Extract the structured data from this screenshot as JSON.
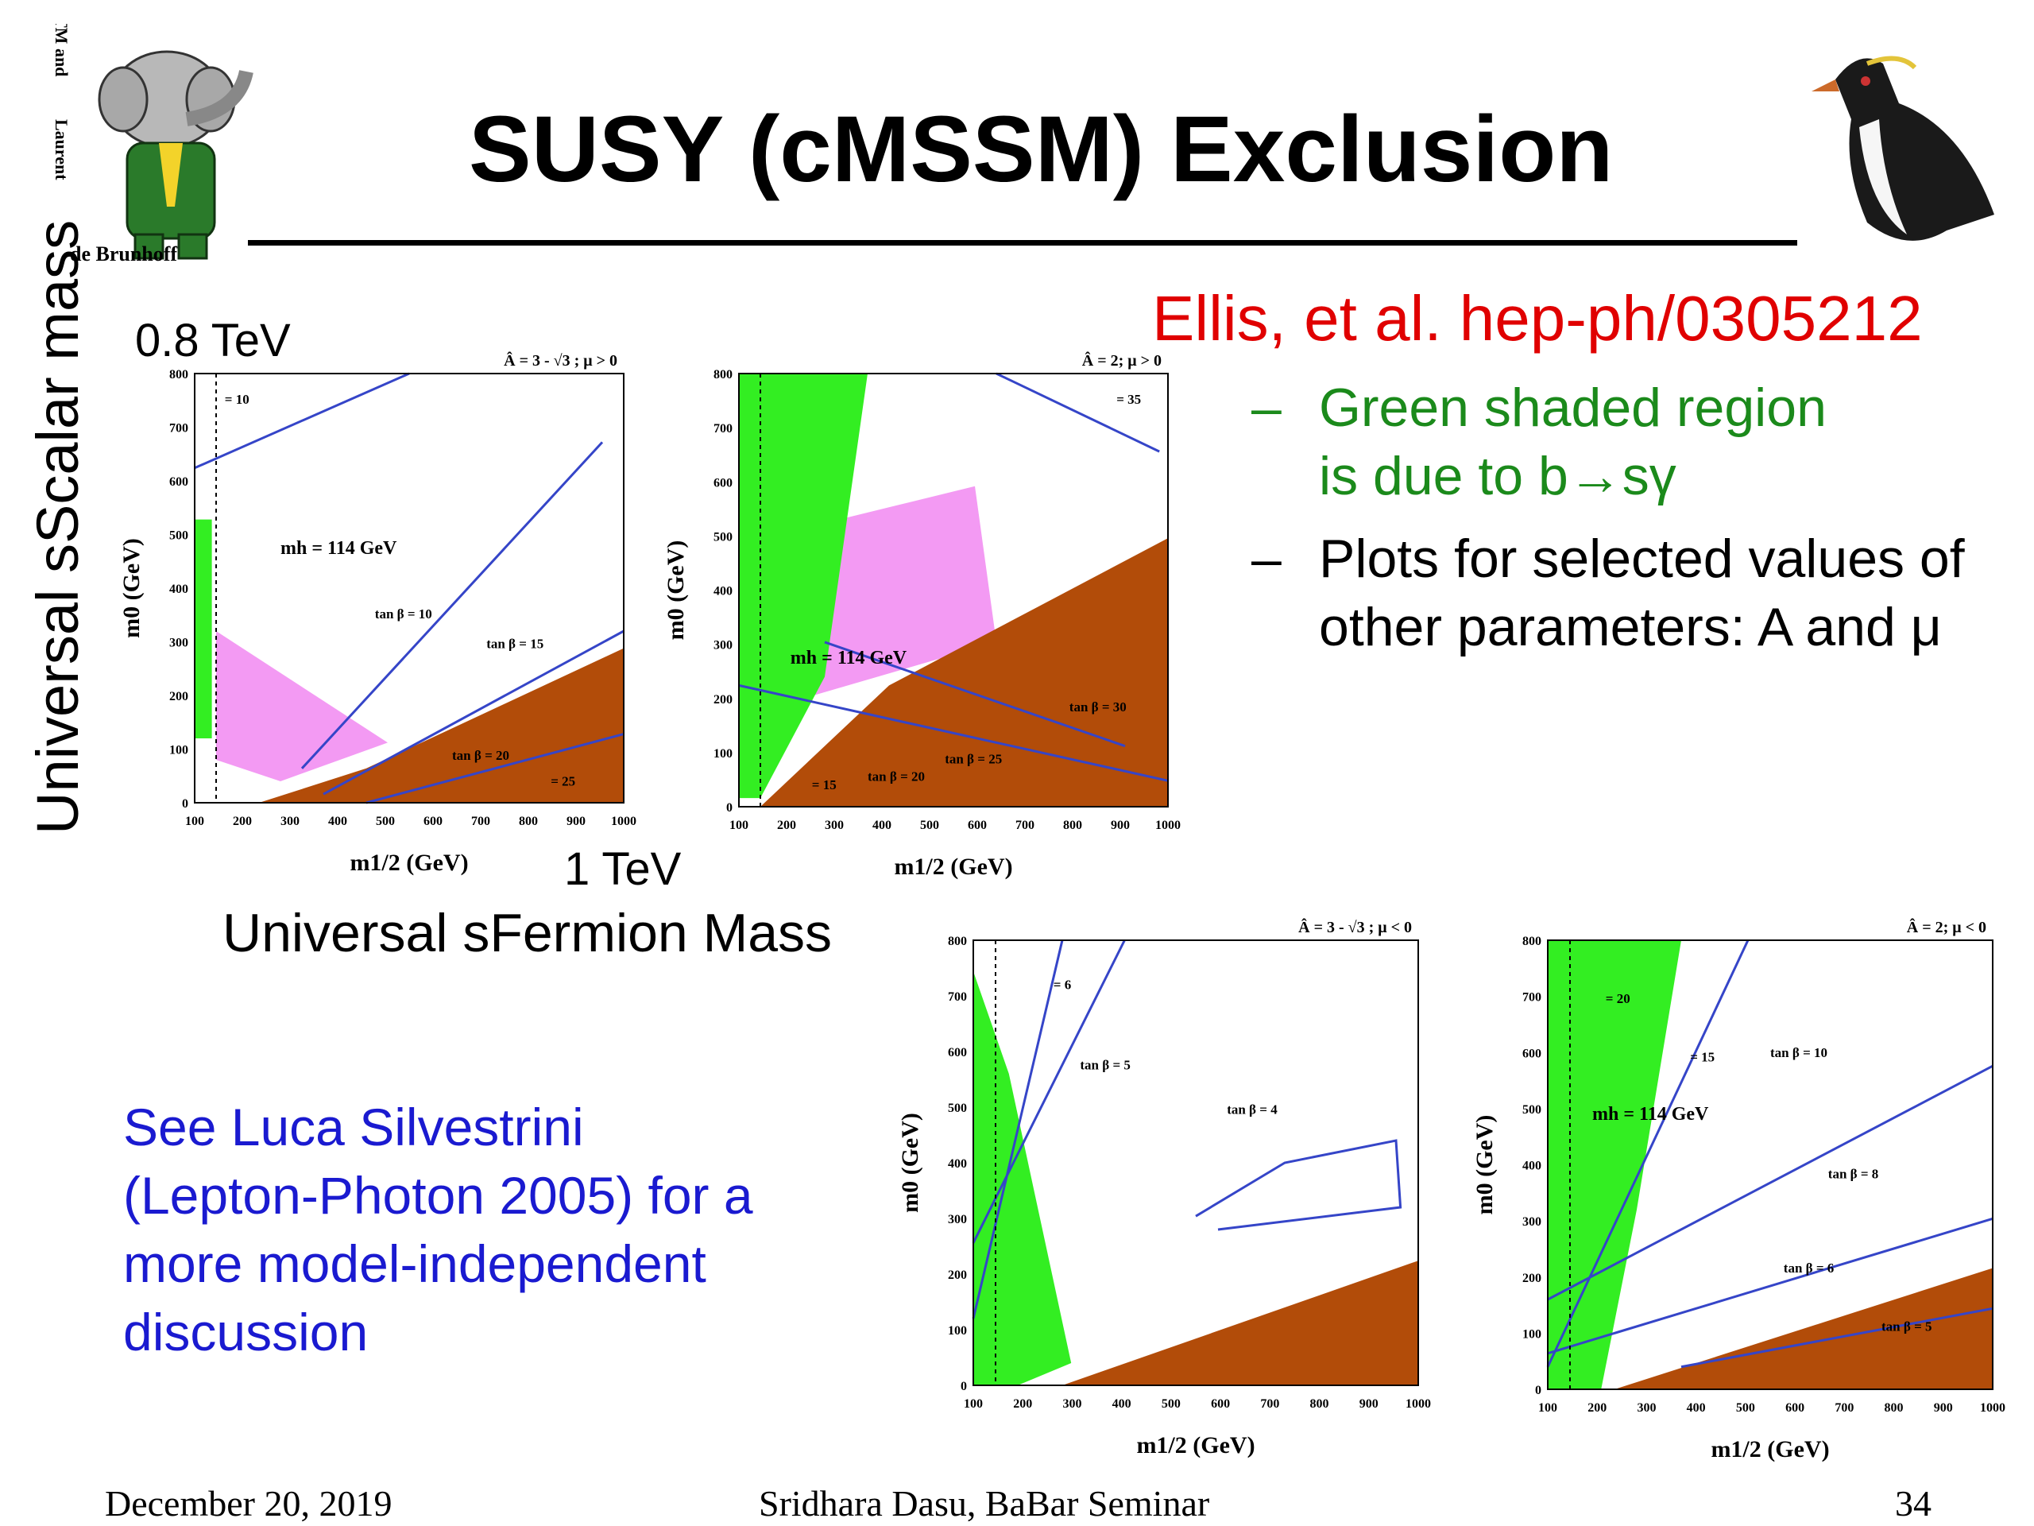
{
  "title": "SUSY (cMSSM) Exclusion",
  "logo_text": {
    "tm": "TM and",
    "copyright": "Laurent",
    "brand": "de Brunhoff"
  },
  "axis": {
    "y_label": "Universal sScalar mass",
    "y_max": "0.8 TeV",
    "x_max": "1 TeV",
    "x_label": "Universal sFermion Mass"
  },
  "reference": "Ellis, et al. hep-ph/0305212",
  "bullets": [
    {
      "dash": "–",
      "line1": "Green shaded region",
      "line2": "is due to b→sγ"
    },
    {
      "dash": "–",
      "line1": "Plots for selected values of",
      "line2": "other parameters: A and μ"
    }
  ],
  "note": [
    "See Luca Silvestrini",
    "(Lepton-Photon 2005) for a",
    "more model-independent",
    "discussion"
  ],
  "footer": {
    "date": "December 20, 2019",
    "center": "Sridhara Dasu, BaBar Seminar",
    "page": "34"
  },
  "colors": {
    "green_region": "#33ee22",
    "pink_region": "#f39af3",
    "brown_region": "#b24c09",
    "contour": "#3545c8",
    "ref_red": "#e00000",
    "bullet_green": "#1b8a1b",
    "note_blue": "#1a1ad0"
  },
  "chart_data": [
    {
      "type": "area",
      "title": "Â = 3 - √3 ; μ > 0",
      "xlabel": "m1/2 (GeV)",
      "ylabel": "m0 (GeV)",
      "xlim": [
        100,
        1000
      ],
      "ylim": [
        0,
        800
      ],
      "x_ticks": [
        "100",
        "200",
        "300",
        "400",
        "500",
        "600",
        "700",
        "800",
        "900",
        "1000"
      ],
      "y_ticks": [
        "0",
        "100",
        "200",
        "300",
        "400",
        "500",
        "600",
        "700",
        "800"
      ],
      "annotations": [
        "= 10",
        "mh = 114 GeV",
        "tan β = 10",
        "tan β = 15",
        "tan β = 20",
        "= 25"
      ]
    },
    {
      "type": "area",
      "title": "Â = 2; μ > 0",
      "xlabel": "m1/2 (GeV)",
      "ylabel": "m0 (GeV)",
      "xlim": [
        100,
        1000
      ],
      "ylim": [
        0,
        800
      ],
      "x_ticks": [
        "100",
        "200",
        "300",
        "400",
        "500",
        "600",
        "700",
        "800",
        "900",
        "1000"
      ],
      "y_ticks": [
        "0",
        "100",
        "200",
        "300",
        "400",
        "500",
        "600",
        "700",
        "800"
      ],
      "annotations": [
        "= 35",
        "mh = 114 GeV",
        "tan β = 30",
        "tan β = 25",
        "tan β = 20",
        "= 15"
      ]
    },
    {
      "type": "area",
      "title": "Â = 3 - √3 ; μ < 0",
      "xlabel": "m1/2 (GeV)",
      "ylabel": "m0 (GeV)",
      "xlim": [
        100,
        1000
      ],
      "ylim": [
        0,
        800
      ],
      "x_ticks": [
        "100",
        "200",
        "300",
        "400",
        "500",
        "600",
        "700",
        "800",
        "900",
        "1000"
      ],
      "y_ticks": [
        "0",
        "100",
        "200",
        "300",
        "400",
        "500",
        "600",
        "700",
        "800"
      ],
      "annotations": [
        "= 6",
        "tan β = 5",
        "tan β = 4"
      ]
    },
    {
      "type": "area",
      "title": "Â = 2; μ < 0",
      "xlabel": "m1/2 (GeV)",
      "ylabel": "m0 (GeV)",
      "xlim": [
        100,
        1000
      ],
      "ylim": [
        0,
        800
      ],
      "x_ticks": [
        "100",
        "200",
        "300",
        "400",
        "500",
        "600",
        "700",
        "800",
        "900",
        "1000"
      ],
      "y_ticks": [
        "0",
        "100",
        "200",
        "300",
        "400",
        "500",
        "600",
        "700",
        "800"
      ],
      "annotations": [
        "= 20",
        "= 15",
        "mh = 114 GeV",
        "tan β = 10",
        "tan β = 8",
        "tan β = 6",
        "tan β = 5"
      ]
    }
  ]
}
